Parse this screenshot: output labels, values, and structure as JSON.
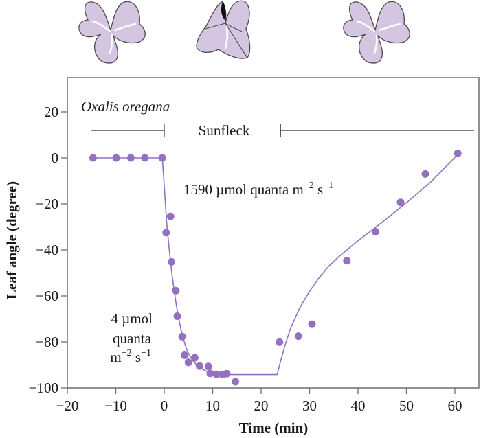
{
  "chart_data": {
    "type": "scatter",
    "title": "",
    "species_label": "Oxalis oregana",
    "period_label": "Sunfleck",
    "sunfleck_period": {
      "start": 0,
      "end": 24
    },
    "pre_post_bar_extent": {
      "start": -15,
      "end": 65
    },
    "xlabel": "Time (min)",
    "ylabel": "Leaf angle (degree)",
    "xlim": [
      -20,
      65
    ],
    "ylim": [
      -100,
      33
    ],
    "xticks": [
      -20,
      -10,
      0,
      10,
      20,
      30,
      40,
      50,
      60
    ],
    "xtick_labels": [
      "−20",
      "−10",
      "0",
      "10",
      "20",
      "30",
      "40",
      "50",
      "60"
    ],
    "yticks": [
      20,
      0,
      -20,
      -40,
      -60,
      -80,
      -100
    ],
    "ytick_labels": [
      "20",
      "0",
      "−20",
      "−40",
      "−60",
      "−80",
      "−100"
    ],
    "grid": false,
    "legend": "none",
    "annotations": {
      "high_light": {
        "value": "1590 µmol quanta m",
        "exp1": "−2",
        "unit2": " s",
        "exp2": "−1"
      },
      "low_light": {
        "line1": "4 µmol",
        "line2": "quanta",
        "line3": "m",
        "exp1": "−2",
        "unit2": " s",
        "exp2": "−1"
      }
    },
    "series": [
      {
        "name": "observed leaf angle",
        "kind": "points",
        "color": "#9370c0",
        "x": [
          -14.7,
          -9.9,
          -6.9,
          -4.0,
          -0.4,
          0.4,
          1.3,
          1.5,
          2.4,
          2.7,
          3.7,
          4.2,
          5.0,
          6.3,
          7.3,
          9.1,
          9.5,
          10.8,
          12.0,
          12.9,
          14.7,
          23.8,
          27.7,
          30.5,
          37.7,
          43.6,
          48.8,
          53.9,
          60.6
        ],
        "y": [
          0,
          0,
          0,
          0,
          0,
          -32.5,
          -25.4,
          -45.2,
          -57.7,
          -68.8,
          -77.7,
          -85.8,
          -88.9,
          -86.9,
          -90.5,
          -90.7,
          -93.7,
          -94.1,
          -94.1,
          -93.8,
          -97.3,
          -80.1,
          -77.5,
          -72.3,
          -44.7,
          -32.1,
          -19.3,
          -7.0,
          2.0
        ]
      },
      {
        "name": "fitted curve",
        "kind": "line",
        "color": "#9370c0",
        "x": [
          -14.7,
          -0.4,
          0.0,
          0.5,
          1.0,
          1.5,
          2.0,
          2.5,
          3.0,
          3.5,
          4.0,
          4.5,
          5.0,
          6.0,
          7.0,
          8.0,
          9.0,
          10.0,
          11.0,
          12.0,
          13.0,
          23.3,
          24.0,
          25.0,
          26.0,
          28.0,
          30.0,
          32.0,
          34.0,
          36.0,
          38.0,
          40.0,
          45.0,
          50.0,
          55.0,
          60.6
        ],
        "y": [
          0,
          0,
          -12,
          -28,
          -39,
          -49,
          -57,
          -64,
          -70,
          -75,
          -79,
          -82.5,
          -85,
          -88.5,
          -90.5,
          -92,
          -93,
          -93.5,
          -94,
          -94.2,
          -94.2,
          -94.2,
          -88.5,
          -81,
          -74.5,
          -65,
          -58,
          -52,
          -47,
          -43,
          -39.5,
          -36,
          -28,
          -19.5,
          -10.5,
          1.5
        ]
      }
    ]
  },
  "leaf_icons": [
    {
      "state": "open",
      "caption": "leaf before sunfleck"
    },
    {
      "state": "folded",
      "caption": "leaf during sunfleck"
    },
    {
      "state": "open",
      "caption": "leaf after sunfleck"
    }
  ]
}
